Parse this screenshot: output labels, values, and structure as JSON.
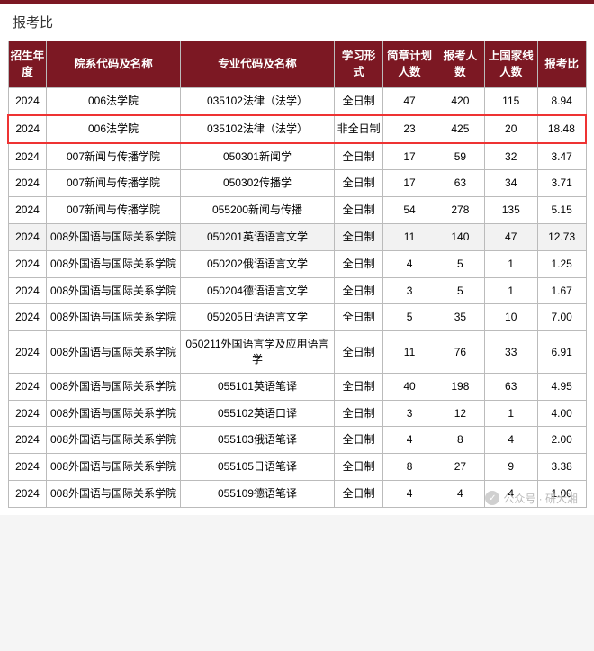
{
  "page": {
    "title": "报考比",
    "watermark_label": "公众号 · 研大湘"
  },
  "table": {
    "col_widths": [
      "40",
      "138",
      "160",
      "50",
      "55",
      "50",
      "55",
      "50"
    ],
    "columns": [
      "招生年度",
      "院系代码及名称",
      "专业代码及名称",
      "学习形式",
      "简章计划人数",
      "报考人数",
      "上国家线人数",
      "报考比"
    ],
    "highlight_index": 1,
    "zebra_indices": [
      5
    ],
    "rows": [
      [
        "2024",
        "006法学院",
        "035102法律（法学）",
        "全日制",
        "47",
        "420",
        "115",
        "8.94"
      ],
      [
        "2024",
        "006法学院",
        "035102法律（法学）",
        "非全日制",
        "23",
        "425",
        "20",
        "18.48"
      ],
      [
        "2024",
        "007新闻与传播学院",
        "050301新闻学",
        "全日制",
        "17",
        "59",
        "32",
        "3.47"
      ],
      [
        "2024",
        "007新闻与传播学院",
        "050302传播学",
        "全日制",
        "17",
        "63",
        "34",
        "3.71"
      ],
      [
        "2024",
        "007新闻与传播学院",
        "055200新闻与传播",
        "全日制",
        "54",
        "278",
        "135",
        "5.15"
      ],
      [
        "2024",
        "008外国语与国际关系学院",
        "050201英语语言文学",
        "全日制",
        "11",
        "140",
        "47",
        "12.73"
      ],
      [
        "2024",
        "008外国语与国际关系学院",
        "050202俄语语言文学",
        "全日制",
        "4",
        "5",
        "1",
        "1.25"
      ],
      [
        "2024",
        "008外国语与国际关系学院",
        "050204德语语言文学",
        "全日制",
        "3",
        "5",
        "1",
        "1.67"
      ],
      [
        "2024",
        "008外国语与国际关系学院",
        "050205日语语言文学",
        "全日制",
        "5",
        "35",
        "10",
        "7.00"
      ],
      [
        "2024",
        "008外国语与国际关系学院",
        "050211外国语言学及应用语言学",
        "全日制",
        "11",
        "76",
        "33",
        "6.91"
      ],
      [
        "2024",
        "008外国语与国际关系学院",
        "055101英语笔译",
        "全日制",
        "40",
        "198",
        "63",
        "4.95"
      ],
      [
        "2024",
        "008外国语与国际关系学院",
        "055102英语口译",
        "全日制",
        "3",
        "12",
        "1",
        "4.00"
      ],
      [
        "2024",
        "008外国语与国际关系学院",
        "055103俄语笔译",
        "全日制",
        "4",
        "8",
        "4",
        "2.00"
      ],
      [
        "2024",
        "008外国语与国际关系学院",
        "055105日语笔译",
        "全日制",
        "8",
        "27",
        "9",
        "3.38"
      ],
      [
        "2024",
        "008外国语与国际关系学院",
        "055109德语笔译",
        "全日制",
        "4",
        "4",
        "4",
        "1.00"
      ]
    ]
  }
}
